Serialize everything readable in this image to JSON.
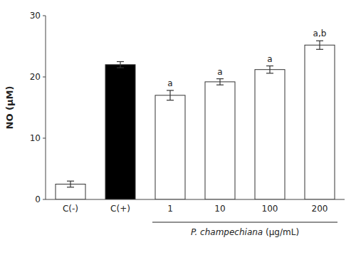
{
  "chart_data": {
    "type": "bar",
    "categories": [
      "C(-)",
      "C(+)",
      "1",
      "10",
      "100",
      "200"
    ],
    "values": [
      2.5,
      22.0,
      17.0,
      19.2,
      21.2,
      25.2
    ],
    "errors": [
      0.5,
      0.5,
      0.8,
      0.5,
      0.6,
      0.7
    ],
    "colors": [
      "white",
      "black",
      "white",
      "white",
      "white",
      "white"
    ],
    "annotations": [
      {
        "text": "a",
        "category": "1"
      },
      {
        "text": "a",
        "category": "10"
      },
      {
        "text": "a",
        "category": "100"
      },
      {
        "text": "a,b",
        "category": "200"
      }
    ],
    "ylabel": "NO (μM)",
    "xlabel": "P. champechiana (μg/mL)",
    "ylim": [
      0,
      30
    ],
    "yticks": [
      0,
      10,
      20,
      30
    ],
    "grid": false
  }
}
